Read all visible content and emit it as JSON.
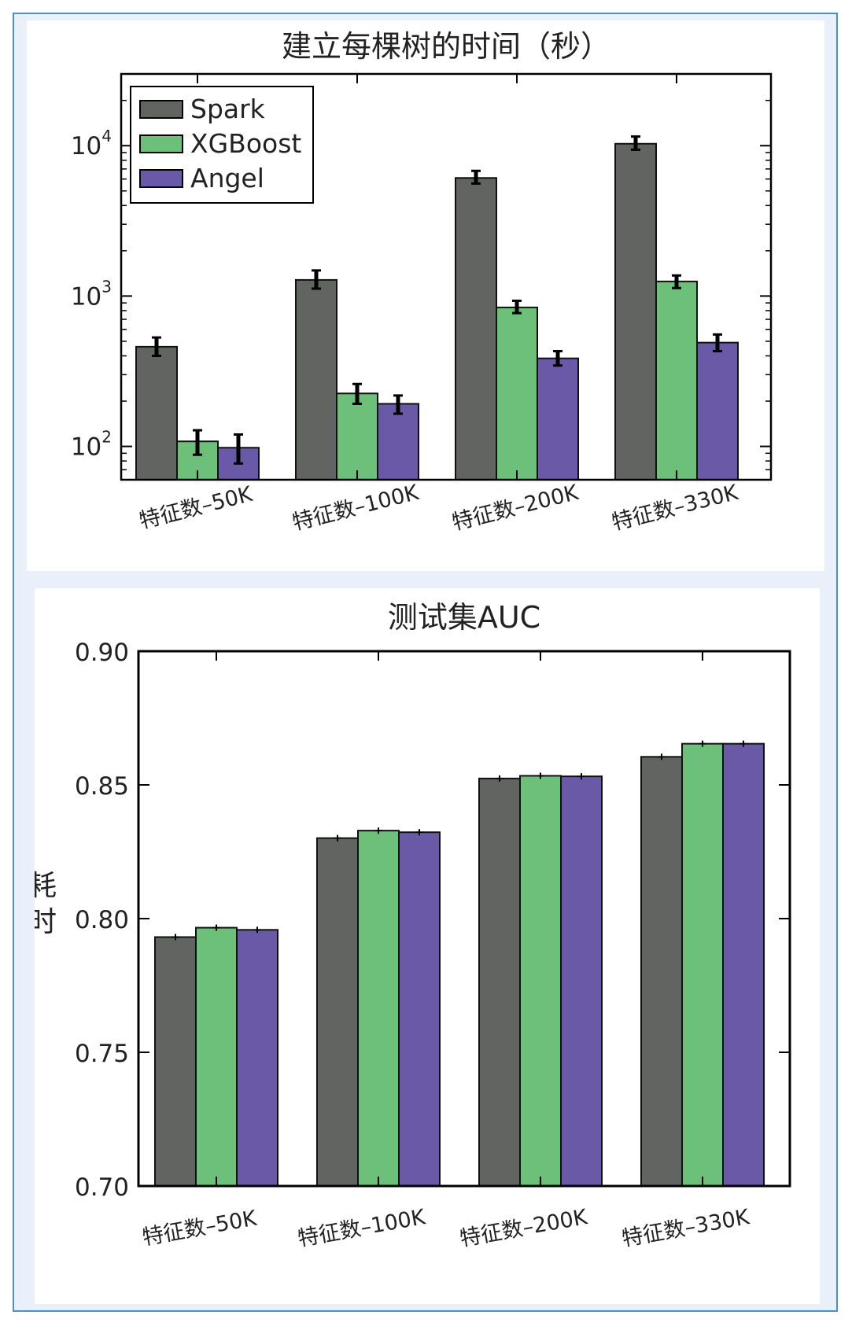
{
  "chart_data": [
    {
      "type": "bar",
      "title": "建立每棵树的时间（秒）",
      "categories": [
        "特征数–50K",
        "特征数–100K",
        "特征数–200K",
        "特征数–330K"
      ],
      "yscale": "log",
      "ylim": [
        60,
        30000
      ],
      "yticks": [
        100,
        1000,
        10000
      ],
      "ytick_labels": [
        {
          "base": "10",
          "exp": "2"
        },
        {
          "base": "10",
          "exp": "3"
        },
        {
          "base": "10",
          "exp": "4"
        }
      ],
      "legend_position": "top-left",
      "grid": false,
      "series": [
        {
          "name": "Spark",
          "color": "#626462",
          "values": [
            460,
            1280,
            6100,
            10300
          ],
          "err": [
            [
              400,
              530
            ],
            [
              1120,
              1480
            ],
            [
              5600,
              6800
            ],
            [
              9400,
              11500
            ]
          ]
        },
        {
          "name": "XGBoost",
          "color": "#6dc07a",
          "values": [
            108,
            225,
            840,
            1250
          ],
          "err": [
            [
              88,
              128
            ],
            [
              192,
              260
            ],
            [
              770,
              930
            ],
            [
              1130,
              1370
            ]
          ]
        },
        {
          "name": "Angel",
          "color": "#6a59a6",
          "values": [
            98,
            192,
            385,
            490
          ],
          "err": [
            [
              77,
              120
            ],
            [
              165,
              218
            ],
            [
              345,
              430
            ],
            [
              430,
              555
            ]
          ]
        }
      ]
    },
    {
      "type": "bar",
      "title": "测试集AUC",
      "ylabel": "耗时",
      "categories": [
        "特征数–50K",
        "特征数–100K",
        "特征数–200K",
        "特征数–330K"
      ],
      "ylim": [
        0.7,
        0.9
      ],
      "yticks": [
        0.7,
        0.75,
        0.8,
        0.85,
        0.9
      ],
      "ytick_labels": [
        "0.70",
        "0.75",
        "0.80",
        "0.85",
        "0.90"
      ],
      "grid": false,
      "series": [
        {
          "name": "Spark",
          "color": "#626462",
          "values": [
            0.7931,
            0.8301,
            0.8524,
            0.8605
          ]
        },
        {
          "name": "XGBoost",
          "color": "#6dc07a",
          "values": [
            0.7966,
            0.8329,
            0.8534,
            0.8654
          ]
        },
        {
          "name": "Angel",
          "color": "#6a59a6",
          "values": [
            0.7958,
            0.8323,
            0.8532,
            0.8654
          ]
        }
      ]
    }
  ]
}
